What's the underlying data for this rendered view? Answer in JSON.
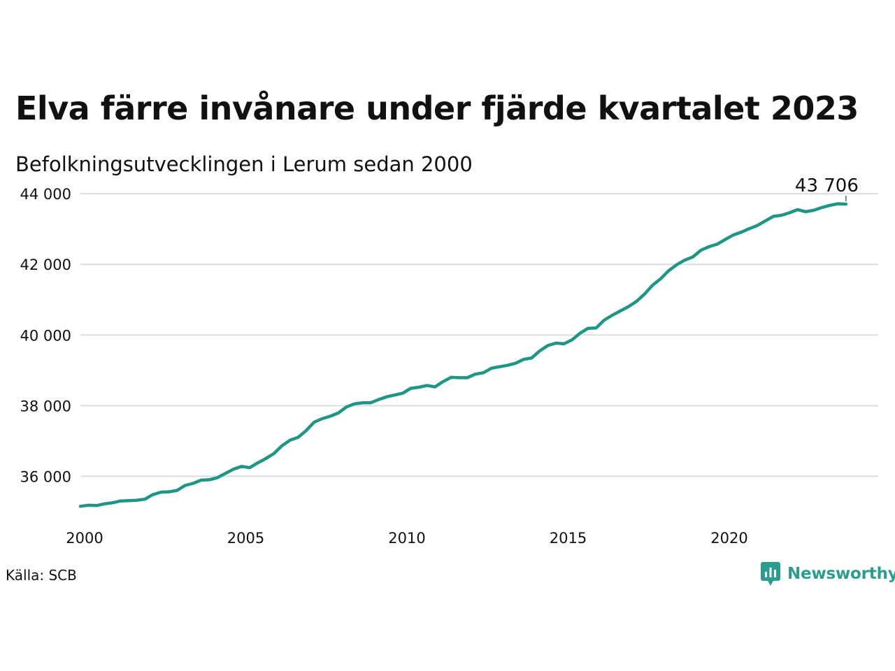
{
  "header": {
    "title": "Elva färre invånare under fjärde kvartalet 2023",
    "subtitle": "Befolkningsutvecklingen i Lerum sedan 2000"
  },
  "footer": {
    "source": "Källa: SCB",
    "brand": "Newsworthy",
    "brand_icon": "newsworthy-logo-icon"
  },
  "colors": {
    "line": "#1d9686",
    "grid": "#dcdde3",
    "brand": "#2a9d8f"
  },
  "chart_data": {
    "type": "line",
    "title": "Elva färre invånare under fjärde kvartalet 2023",
    "subtitle": "Befolkningsutvecklingen i Lerum sedan 2000",
    "xlabel": "",
    "ylabel": "",
    "grid": true,
    "xlim": [
      2000,
      2024.75
    ],
    "ylim": [
      34800,
      44300
    ],
    "x_ticks": [
      2000,
      2005,
      2010,
      2015,
      2020
    ],
    "x_tick_labels": [
      "2000",
      "2005",
      "2010",
      "2015",
      "2020"
    ],
    "y_ticks": [
      36000,
      38000,
      40000,
      42000,
      44000
    ],
    "y_tick_labels": [
      "36 000",
      "38 000",
      "40 000",
      "42 000",
      "44 000"
    ],
    "end_label": "43 706",
    "series": [
      {
        "x": [
          2000.0,
          2000.25,
          2000.5,
          2000.75,
          2001.0,
          2001.25,
          2001.5,
          2001.75,
          2002.0,
          2002.25,
          2002.5,
          2002.75,
          2003.0,
          2003.25,
          2003.5,
          2003.75,
          2004.0,
          2004.25,
          2004.5,
          2004.75,
          2005.0,
          2005.25,
          2005.5,
          2005.75,
          2006.0,
          2006.25,
          2006.5,
          2006.75,
          2007.0,
          2007.25,
          2007.5,
          2007.75,
          2008.0,
          2008.25,
          2008.5,
          2008.75,
          2009.0,
          2009.25,
          2009.5,
          2009.75,
          2010.0,
          2010.25,
          2010.5,
          2010.75,
          2011.0,
          2011.25,
          2011.5,
          2011.75,
          2012.0,
          2012.25,
          2012.5,
          2012.75,
          2013.0,
          2013.25,
          2013.5,
          2013.75,
          2014.0,
          2014.25,
          2014.5,
          2014.75,
          2015.0,
          2015.25,
          2015.5,
          2015.75,
          2016.0,
          2016.25,
          2016.5,
          2016.75,
          2017.0,
          2017.25,
          2017.5,
          2017.75,
          2018.0,
          2018.25,
          2018.5,
          2018.75,
          2019.0,
          2019.25,
          2019.5,
          2019.75,
          2020.0,
          2020.25,
          2020.5,
          2020.75,
          2021.0,
          2021.25,
          2021.5,
          2021.75,
          2022.0,
          2022.25,
          2022.5,
          2022.75,
          2023.0,
          2023.25,
          2023.5,
          2023.75
        ],
        "values": [
          35150,
          35180,
          35170,
          35220,
          35250,
          35300,
          35310,
          35320,
          35350,
          35480,
          35550,
          35560,
          35600,
          35740,
          35800,
          35890,
          35900,
          35960,
          36080,
          36200,
          36280,
          36240,
          36380,
          36500,
          36640,
          36860,
          37020,
          37100,
          37290,
          37530,
          37630,
          37700,
          37790,
          37960,
          38050,
          38080,
          38080,
          38170,
          38250,
          38300,
          38350,
          38490,
          38520,
          38570,
          38530,
          38680,
          38800,
          38790,
          38790,
          38890,
          38930,
          39060,
          39100,
          39140,
          39200,
          39310,
          39350,
          39550,
          39700,
          39770,
          39750,
          39860,
          40050,
          40190,
          40200,
          40420,
          40560,
          40680,
          40800,
          40950,
          41160,
          41410,
          41590,
          41820,
          41990,
          42120,
          42210,
          42400,
          42500,
          42570,
          42700,
          42830,
          42910,
          43010,
          43100,
          43230,
          43360,
          43390,
          43460,
          43550,
          43490,
          43530,
          43610,
          43670,
          43717,
          43706
        ]
      }
    ]
  }
}
